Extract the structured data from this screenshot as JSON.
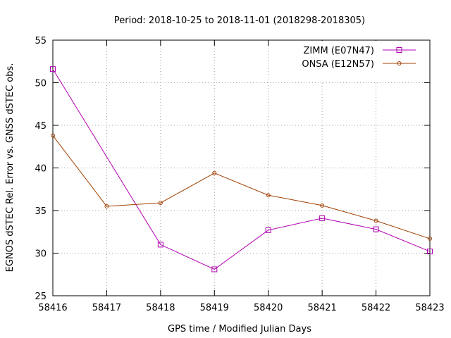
{
  "chart_data": {
    "type": "line",
    "title": "Period: 2018-10-25 to 2018-11-01 (2018298-2018305)",
    "xlabel": "GPS time / Modified Julian Days",
    "ylabel": "EGNOS dSTEC Rel. Error vs. GNSS dSTEC obs.",
    "xlim": [
      58416,
      58423
    ],
    "ylim": [
      25,
      55
    ],
    "xticks": [
      "58416",
      "58417",
      "58418",
      "58419",
      "58420",
      "58421",
      "58422",
      "58423"
    ],
    "yticks": [
      "25",
      "30",
      "35",
      "40",
      "45",
      "50",
      "55"
    ],
    "grid": true,
    "legend_position": "top-right",
    "x": [
      58416,
      58417,
      58418,
      58419,
      58420,
      58421,
      58422,
      58423
    ],
    "series": [
      {
        "name": "ZIMM (E07N47)",
        "color": "#b000b0",
        "marker": "square",
        "values": [
          51.6,
          null,
          31.0,
          28.1,
          32.7,
          34.1,
          32.8,
          30.2
        ]
      },
      {
        "name": "ONSA (E12N57)",
        "color": "#a04000",
        "marker": "circle",
        "values": [
          43.8,
          35.5,
          35.9,
          39.4,
          36.8,
          35.6,
          33.8,
          31.7
        ]
      }
    ]
  }
}
